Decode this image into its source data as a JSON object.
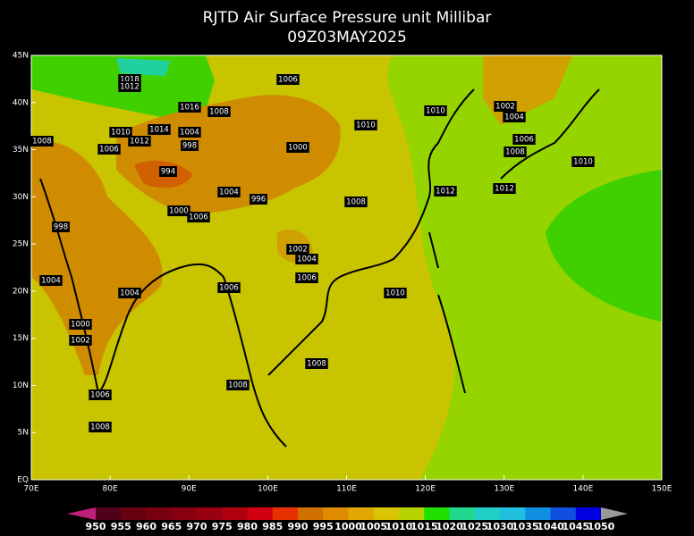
{
  "title": "RJTD Air Surface Pressure unit Millibar",
  "subtitle": "09Z03MAY2025",
  "lat_labels": [
    "45N",
    "40N",
    "35N",
    "30N",
    "25N",
    "20N",
    "15N",
    "10N",
    "5N",
    "EQ"
  ],
  "lon_labels": [
    "70E",
    "80E",
    "90E",
    "100E",
    "110E",
    "120E",
    "130E",
    "140E",
    "150E"
  ],
  "contour_labels": [
    "1018",
    "1012",
    "1006",
    "1016",
    "1008",
    "1010",
    "1010",
    "1002",
    "1004",
    "1008",
    "1010",
    "1014",
    "1004",
    "1006",
    "1012",
    "998",
    "994",
    "1000",
    "1006",
    "1008",
    "1010",
    "1012",
    "1012",
    "1004",
    "996",
    "1008",
    "1000",
    "1006",
    "998",
    "1002",
    "1004",
    "1006",
    "1004",
    "1004",
    "1006",
    "1010",
    "1000",
    "1002",
    "1008",
    "1008",
    "1006",
    "1008"
  ],
  "colorbar": {
    "labels": [
      950,
      955,
      960,
      965,
      970,
      975,
      980,
      985,
      990,
      995,
      1000,
      1005,
      1010,
      1015,
      1020,
      1025,
      1030,
      1035,
      1040,
      1045,
      1050
    ]
  }
}
